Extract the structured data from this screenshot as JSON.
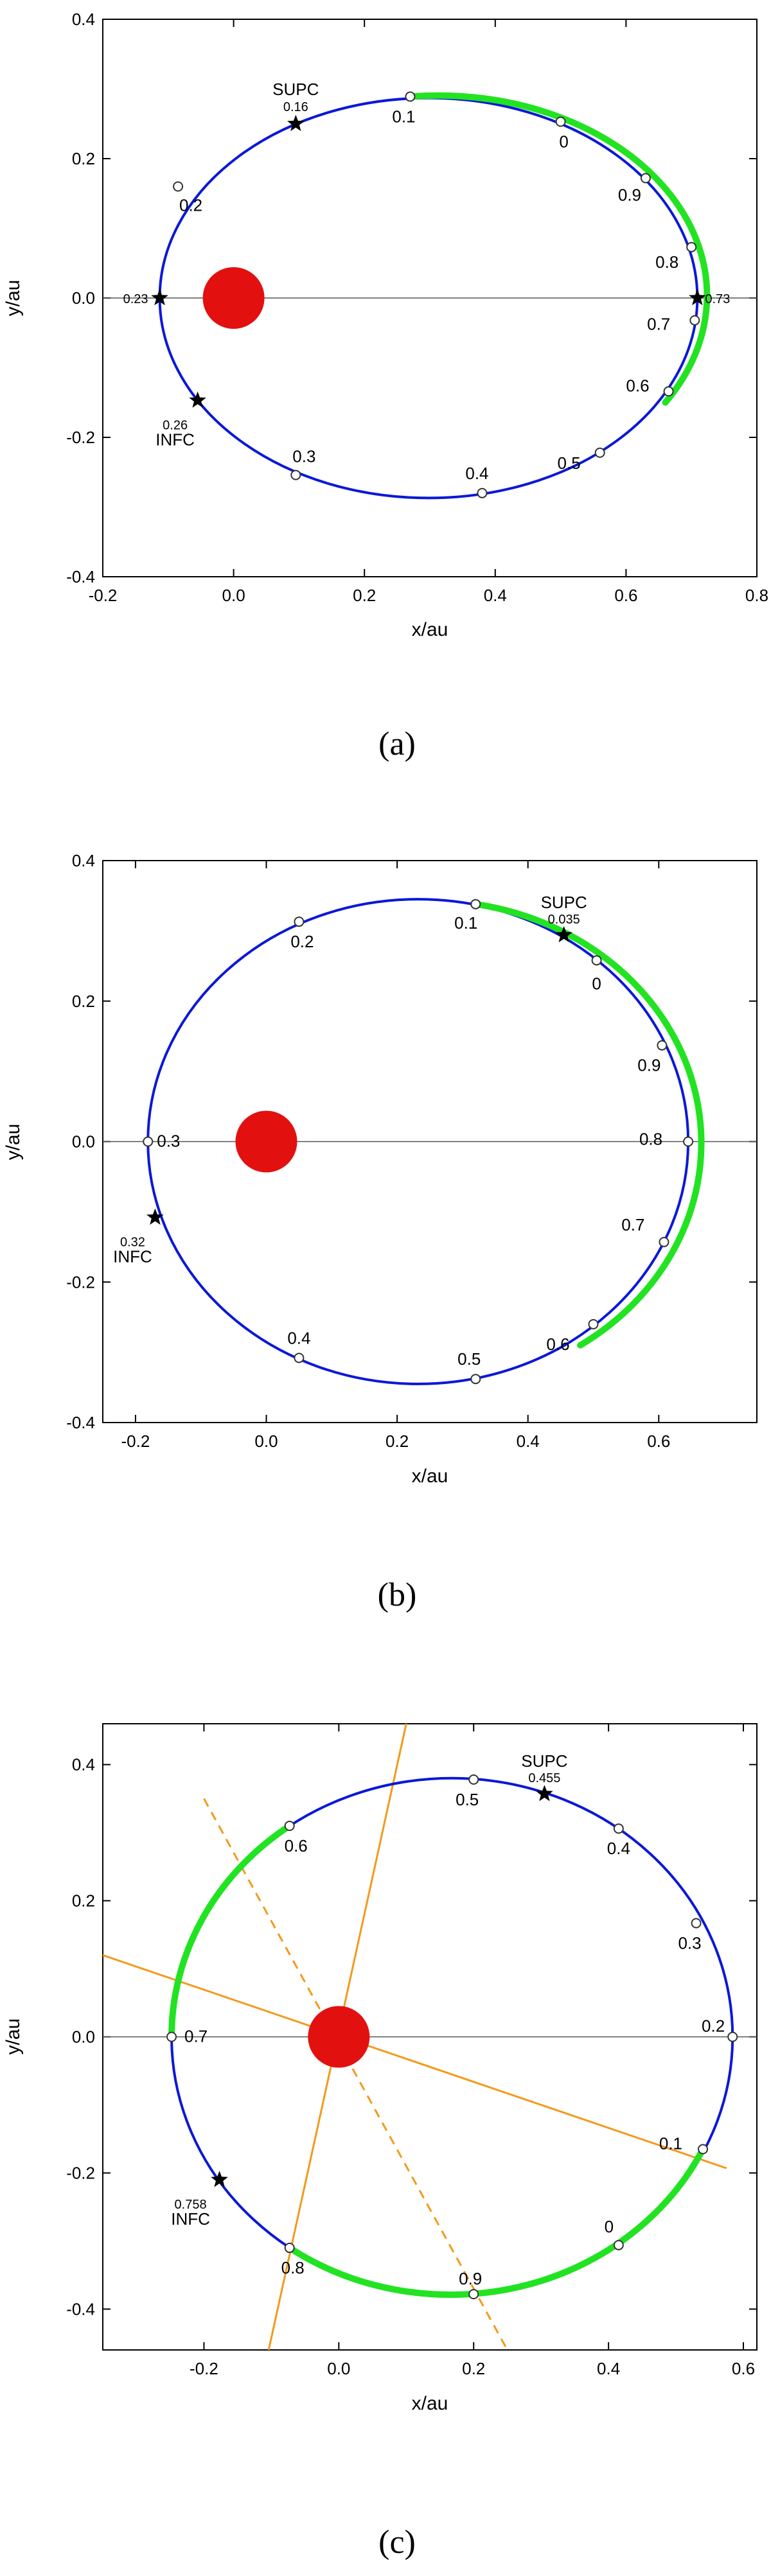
{
  "colors": {
    "orbit": "#0b18d8",
    "highlight": "#22e322",
    "star": "#e31010",
    "axisline": "#000000",
    "sightline": "#f39a1c"
  },
  "chart_data": [
    {
      "type": "scatter",
      "caption": "(a)",
      "xlabel": "x/au",
      "ylabel": "y/au",
      "xlim": [
        -0.2,
        0.8
      ],
      "ylim": [
        -0.4,
        0.4
      ],
      "xticks": [
        "-0.2",
        "0.0",
        "0.2",
        "0.4",
        "0.6",
        "0.8"
      ],
      "yticks": [
        "-0.4",
        "-0.2",
        "0.0",
        "0.2",
        "0.4"
      ],
      "orbit": {
        "center": [
          0.298,
          0.0
        ],
        "a": 0.411,
        "b": 0.287
      },
      "highlight_arc": {
        "from": [
          0.27,
          0.289
        ],
        "to": [
          0.66,
          -0.15
        ]
      },
      "star_disk": {
        "x": 0.0,
        "y": 0.0
      },
      "phase_points": [
        {
          "label": "0.1",
          "x": 0.27,
          "y": 0.289
        },
        {
          "label": "0",
          "x": 0.5,
          "y": 0.253
        },
        {
          "label": "0.9",
          "x": 0.63,
          "y": 0.172
        },
        {
          "label": "0.8",
          "x": 0.7,
          "y": 0.073
        },
        {
          "label": "0.7",
          "x": 0.705,
          "y": -0.032
        },
        {
          "label": "0.6",
          "x": 0.665,
          "y": -0.134
        },
        {
          "label": "0.5",
          "x": 0.56,
          "y": -0.222
        },
        {
          "label": "0.4",
          "x": 0.38,
          "y": -0.28
        },
        {
          "label": "0.3",
          "x": 0.095,
          "y": -0.254
        },
        {
          "label": "0.2",
          "x": -0.085,
          "y": 0.16
        }
      ],
      "events": [
        {
          "name": "SUPC",
          "phase": "0.16",
          "x": 0.095,
          "y": 0.25
        },
        {
          "name": "INFC",
          "phase": "0.26",
          "x": -0.055,
          "y": -0.147
        },
        {
          "name": "",
          "phase": "0.23",
          "x": -0.113,
          "y": 0.0
        },
        {
          "name": "",
          "phase": "0.73",
          "x": 0.709,
          "y": 0.0
        }
      ]
    },
    {
      "type": "scatter",
      "caption": "(b)",
      "xlabel": "x/au",
      "ylabel": "y/au",
      "xlim": [
        -0.25,
        0.75
      ],
      "ylim": [
        -0.4,
        0.4
      ],
      "xticks": [
        "-0.2",
        "0.0",
        "0.2",
        "0.4",
        "0.6"
      ],
      "yticks": [
        "-0.4",
        "-0.2",
        "0.0",
        "0.2",
        "0.4"
      ],
      "orbit": {
        "center": [
          0.232,
          0.0
        ],
        "a": 0.413,
        "b": 0.345
      },
      "highlight_arc": {
        "from": [
          0.32,
          0.338
        ],
        "to": [
          0.48,
          -0.29
        ]
      },
      "star_disk": {
        "x": 0.0,
        "y": 0.0
      },
      "phase_points": [
        {
          "label": "0.1",
          "x": 0.32,
          "y": 0.338
        },
        {
          "label": "0",
          "x": 0.505,
          "y": 0.258
        },
        {
          "label": "0.9",
          "x": 0.605,
          "y": 0.137
        },
        {
          "label": "0.8",
          "x": 0.645,
          "y": 0.0
        },
        {
          "label": "0.7",
          "x": 0.608,
          "y": -0.143
        },
        {
          "label": "0.6",
          "x": 0.5,
          "y": -0.26
        },
        {
          "label": "0.5",
          "x": 0.32,
          "y": -0.338
        },
        {
          "label": "0.4",
          "x": 0.05,
          "y": -0.308
        },
        {
          "label": "0.3",
          "x": -0.181,
          "y": 0.0
        },
        {
          "label": "0.2",
          "x": 0.05,
          "y": 0.313
        }
      ],
      "events": [
        {
          "name": "SUPC",
          "phase": "0.035",
          "x": 0.455,
          "y": 0.294
        },
        {
          "name": "INFC",
          "phase": "0.32",
          "x": -0.17,
          "y": -0.108
        }
      ]
    },
    {
      "type": "scatter",
      "caption": "(c)",
      "xlabel": "x/au",
      "ylabel": "y/au",
      "xlim": [
        -0.35,
        0.62
      ],
      "ylim": [
        -0.46,
        0.46
      ],
      "xticks": [
        "-0.2",
        "0.0",
        "0.2",
        "0.4",
        "0.6"
      ],
      "yticks": [
        "-0.4",
        "-0.2",
        "0.0",
        "0.2",
        "0.4"
      ],
      "orbit": {
        "center": [
          0.168,
          0.0
        ],
        "a": 0.416,
        "b": 0.38
      },
      "highlight_arcs": [
        {
          "from": [
            0.54,
            -0.165
          ],
          "to": [
            -0.073,
            -0.31
          ]
        },
        {
          "from": [
            -0.248,
            0.0
          ],
          "to": [
            -0.073,
            0.31
          ]
        }
      ],
      "star_disk": {
        "x": 0.0,
        "y": 0.0
      },
      "phase_points": [
        {
          "label": "0.5",
          "x": 0.2,
          "y": 0.378
        },
        {
          "label": "0.4",
          "x": 0.415,
          "y": 0.306
        },
        {
          "label": "0.3",
          "x": 0.53,
          "y": 0.167
        },
        {
          "label": "0.2",
          "x": 0.584,
          "y": 0.0
        },
        {
          "label": "0.1",
          "x": 0.54,
          "y": -0.165
        },
        {
          "label": "0",
          "x": 0.415,
          "y": -0.306
        },
        {
          "label": "0.9",
          "x": 0.2,
          "y": -0.378
        },
        {
          "label": "0.8",
          "x": -0.073,
          "y": -0.31
        },
        {
          "label": "0.7",
          "x": -0.248,
          "y": 0.0
        },
        {
          "label": "0.6",
          "x": -0.073,
          "y": 0.31
        }
      ],
      "events": [
        {
          "name": "SUPC",
          "phase": "0.455",
          "x": 0.305,
          "y": 0.357
        },
        {
          "name": "INFC",
          "phase": "0.758",
          "x": -0.177,
          "y": -0.21
        }
      ],
      "sight_lines": [
        {
          "style": "solid",
          "from": [
            -0.104,
            -0.46
          ],
          "to": [
            0.1,
            0.46
          ]
        },
        {
          "style": "solid",
          "from": [
            -0.35,
            0.12
          ],
          "to": [
            0.575,
            -0.193
          ]
        },
        {
          "style": "dashed",
          "from": [
            -0.2,
            0.35
          ],
          "to": [
            0.25,
            -0.46
          ]
        }
      ]
    }
  ]
}
